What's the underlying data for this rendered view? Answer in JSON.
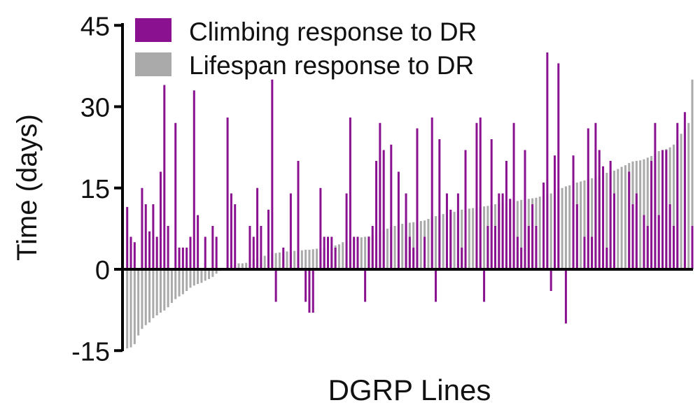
{
  "chart_data": {
    "type": "bar",
    "title": "",
    "xlabel": "DGRP Lines",
    "ylabel": "Time (days)",
    "ylim": [
      -15,
      45
    ],
    "yticks": [
      -15,
      0,
      15,
      30,
      45
    ],
    "grid": false,
    "legend_placement": "top",
    "colors": {
      "climbing": "#8a1190",
      "lifespan": "#aaaaaa"
    },
    "series": [
      {
        "name": "Climbing response to DR",
        "values": [
          11.5,
          6,
          5,
          0,
          15,
          12,
          7,
          12,
          6,
          18,
          34,
          8,
          0,
          27,
          4,
          4,
          4,
          6,
          33,
          10,
          0,
          6,
          0,
          8,
          6,
          0,
          0,
          28,
          14,
          12,
          0,
          0,
          0,
          8,
          6,
          15,
          8,
          0,
          11,
          35,
          -6,
          0,
          4,
          0,
          14,
          0,
          20,
          0,
          -6,
          -8,
          -8,
          0,
          15,
          6,
          6,
          6,
          4,
          0,
          0,
          14,
          28,
          6,
          6,
          0,
          -6,
          6,
          8,
          20,
          27,
          22,
          0,
          23,
          0,
          18,
          0,
          14,
          6,
          4,
          26,
          0,
          6,
          0,
          28,
          -6,
          24,
          0,
          14,
          11,
          0,
          14,
          4,
          22,
          0,
          0,
          27,
          28,
          -6,
          8,
          24,
          8,
          14,
          14,
          20,
          13,
          27,
          6,
          4,
          22,
          8,
          12,
          8,
          0,
          16,
          40,
          -4,
          21,
          38,
          0,
          -10,
          0,
          21,
          12,
          0,
          6,
          26,
          6,
          27,
          22,
          19,
          4,
          20,
          14,
          0,
          0,
          0,
          18,
          12,
          14,
          0,
          10,
          8,
          20,
          27,
          10,
          22,
          22,
          12,
          8,
          27,
          0,
          29,
          0,
          8
        ]
      },
      {
        "name": "Lifespan response to DR",
        "values": [
          -14.6,
          -14.4,
          -13.8,
          -12.2,
          -11.0,
          -10.3,
          -9.8,
          -9.0,
          -8.5,
          -8.0,
          -7.6,
          -7.0,
          -6.2,
          -5.5,
          -5.0,
          -4.6,
          -4.0,
          -3.4,
          -3.0,
          -2.7,
          -2.5,
          -2.1,
          -1.8,
          -1.4,
          -0.8,
          -0.3,
          0.2,
          0.4,
          0.6,
          0.8,
          1.1,
          1.1,
          1.2,
          1.4,
          1.8,
          2.0,
          2.2,
          2.5,
          2.7,
          2.9,
          3.0,
          3.1,
          3.2,
          3.3,
          3.3,
          3.4,
          3.5,
          3.5,
          3.6,
          3.6,
          3.7,
          3.8,
          3.9,
          4.0,
          4.1,
          4.2,
          4.4,
          4.6,
          5.0,
          5.2,
          5.4,
          5.6,
          5.8,
          5.9,
          6.0,
          6.1,
          6.3,
          6.6,
          6.9,
          7.2,
          7.5,
          7.8,
          8.0,
          8.2,
          8.4,
          8.5,
          8.6,
          8.7,
          8.8,
          8.9,
          9.0,
          9.3,
          9.6,
          9.8,
          10.0,
          10.2,
          10.4,
          10.5,
          10.6,
          10.8,
          11.0,
          11.1,
          11.2,
          11.3,
          11.4,
          11.5,
          11.6,
          11.7,
          11.8,
          12.0,
          12.1,
          12.2,
          12.3,
          12.4,
          12.5,
          12.6,
          12.8,
          12.9,
          13.0,
          13.1,
          13.2,
          13.4,
          13.6,
          13.8,
          14.0,
          14.3,
          14.7,
          15.0,
          15.3,
          15.5,
          15.8,
          16.0,
          16.2,
          16.4,
          16.6,
          16.8,
          17.0,
          17.2,
          17.5,
          17.8,
          18.0,
          18.2,
          18.5,
          18.9,
          19.2,
          19.6,
          19.9,
          20.0,
          20.1,
          20.3,
          20.6,
          20.9,
          21.3,
          21.8,
          22.0,
          22.2,
          22.5,
          23.0,
          24.0,
          25.0,
          26.0,
          27.0,
          35.0
        ]
      }
    ]
  }
}
